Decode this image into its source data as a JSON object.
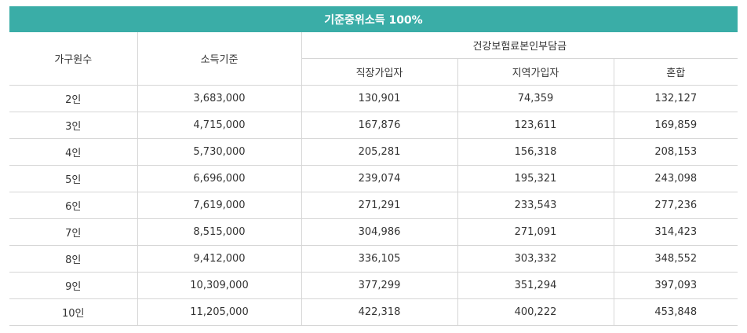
{
  "table": {
    "title": "기준중위소득 100%",
    "headers": {
      "household": "가구원수",
      "income": "소득기준",
      "premium": "건강보험료본인부담금",
      "employee": "직장가입자",
      "regional": "지역가입자",
      "mixed": "혼합"
    },
    "rows": [
      [
        "2인",
        "3,683,000",
        "130,901",
        "74,359",
        "132,127"
      ],
      [
        "3인",
        "4,715,000",
        "167,876",
        "123,611",
        "169,859"
      ],
      [
        "4인",
        "5,730,000",
        "205,281",
        "156,318",
        "208,153"
      ],
      [
        "5인",
        "6,696,000",
        "239,074",
        "195,321",
        "243,098"
      ],
      [
        "6인",
        "7,619,000",
        "271,291",
        "233,543",
        "277,236"
      ],
      [
        "7인",
        "8,515,000",
        "304,986",
        "271,091",
        "314,423"
      ],
      [
        "8인",
        "9,412,000",
        "336,105",
        "303,332",
        "348,552"
      ],
      [
        "9인",
        "10,309,000",
        "377,299",
        "351,294",
        "397,093"
      ],
      [
        "10인",
        "11,205,000",
        "422,318",
        "400,222",
        "453,848"
      ]
    ],
    "accent_color": "#3aada7"
  }
}
